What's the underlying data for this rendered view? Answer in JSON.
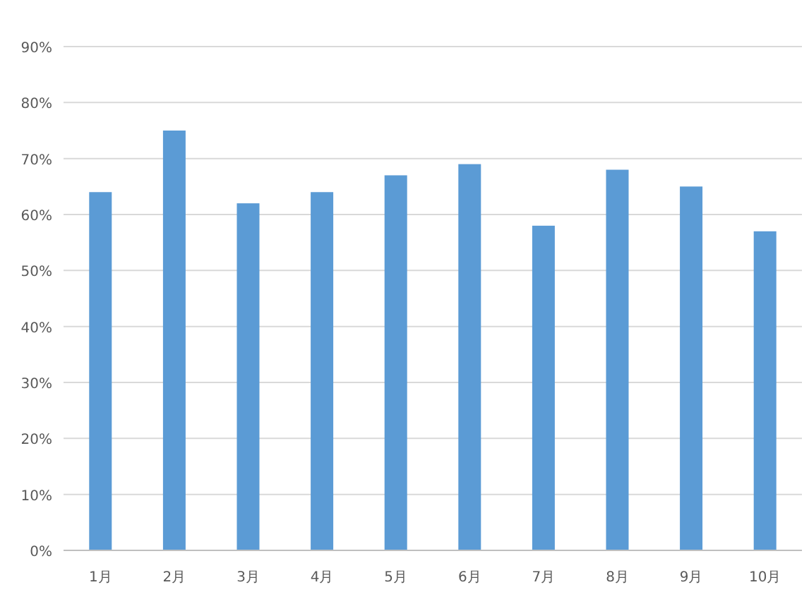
{
  "chart_data": {
    "type": "bar",
    "categories": [
      "1月",
      "2月",
      "3月",
      "4月",
      "5月",
      "6月",
      "7月",
      "8月",
      "9月",
      "10月"
    ],
    "values": [
      64,
      75,
      62,
      64,
      67,
      69,
      58,
      68,
      65,
      57
    ],
    "color": "#5b9bd5",
    "ylim": [
      0,
      90
    ],
    "yticks": [
      {
        "value": 0,
        "label": "0%"
      },
      {
        "value": 10,
        "label": "10%"
      },
      {
        "value": 20,
        "label": "20%"
      },
      {
        "value": 30,
        "label": "30%"
      },
      {
        "value": 40,
        "label": "40%"
      },
      {
        "value": 50,
        "label": "50%"
      },
      {
        "value": 60,
        "label": "60%"
      },
      {
        "value": 70,
        "label": "70%"
      },
      {
        "value": 80,
        "label": "80%"
      },
      {
        "value": 90,
        "label": "90%"
      }
    ],
    "grid": "y"
  }
}
